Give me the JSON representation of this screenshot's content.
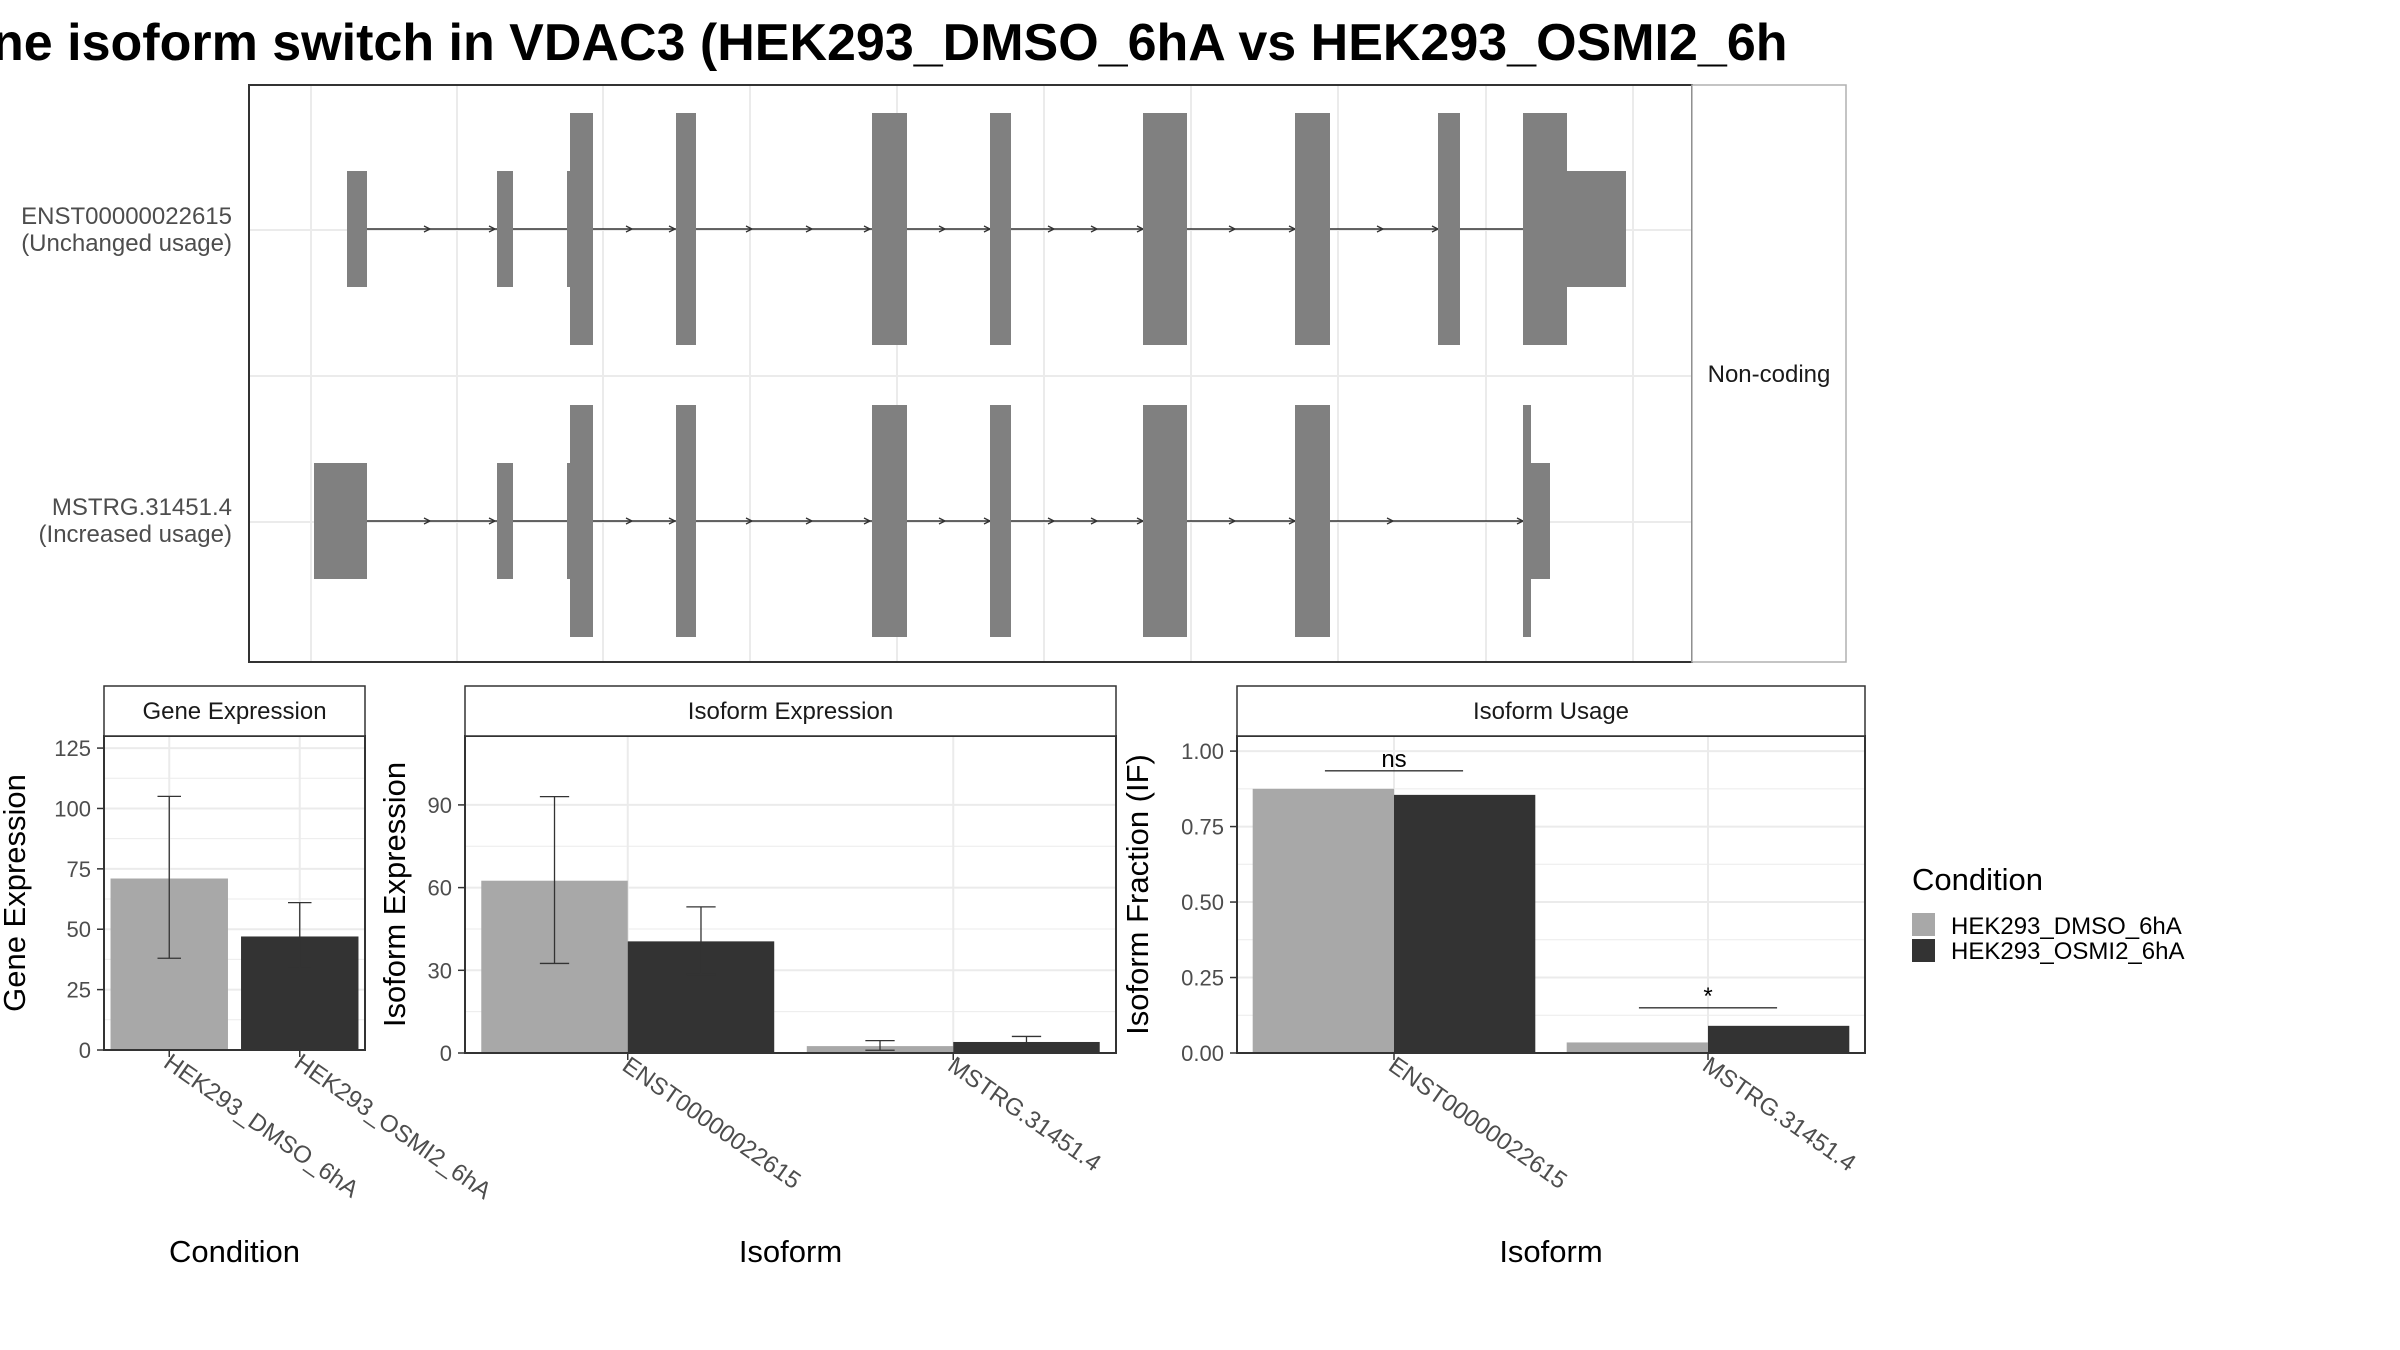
{
  "title": "ne isoform switch in VDAC3 (HEK293_DMSO_6hA vs HEK293_OSMI2_6h",
  "colors": {
    "dmso": "#a8a8a8",
    "osmi2": "#333333",
    "exon": "#808080",
    "grid": "#ebebeb",
    "panel_border": "#333333",
    "strip_fill": "#ffffff"
  },
  "legend": {
    "title": "Condition",
    "items": [
      "HEK293_DMSO_6hA",
      "HEK293_OSMI2_6hA"
    ]
  },
  "isoform_structure": {
    "facet_label": "Non-coding",
    "isoforms": [
      {
        "id": "ENST00000022615",
        "note": "(Unchanged usage)"
      },
      {
        "id": "MSTRG.31451.4",
        "note": "(Increased usage)"
      }
    ]
  },
  "chart_data": [
    {
      "type": "bar",
      "title": "Gene Expression",
      "xlabel": "Condition",
      "ylabel": "Gene Expression",
      "ylim": [
        0,
        130
      ],
      "yticks": [
        0,
        25,
        50,
        75,
        100,
        125
      ],
      "categories": [
        "HEK293_DMSO_6hA",
        "HEK293_OSMI2_6hA"
      ],
      "values": [
        71,
        47
      ],
      "error_low": [
        38,
        34
      ],
      "error_high": [
        105,
        61
      ]
    },
    {
      "type": "bar",
      "title": "Isoform Expression",
      "xlabel": "Isoform",
      "ylabel": "Isoform Expression",
      "ylim": [
        0,
        115
      ],
      "yticks": [
        0,
        30,
        60,
        90
      ],
      "categories": [
        "ENST00000022615",
        "MSTRG.31451.4"
      ],
      "series": [
        {
          "name": "HEK293_DMSO_6hA",
          "values": [
            62.5,
            2.5
          ],
          "error_low": [
            32.5,
            1
          ],
          "error_high": [
            93,
            4.5
          ]
        },
        {
          "name": "HEK293_OSMI2_6hA",
          "values": [
            40.5,
            4
          ],
          "error_low": [
            28.5,
            2.5
          ],
          "error_high": [
            53,
            6
          ]
        }
      ]
    },
    {
      "type": "bar",
      "title": "Isoform Usage",
      "xlabel": "Isoform",
      "ylabel": "Isoform Fraction (IF)",
      "ylim": [
        0,
        1.05
      ],
      "yticks": [
        0,
        0.25,
        0.5,
        0.75,
        1.0
      ],
      "ytick_labels": [
        "0.00",
        "0.25",
        "0.50",
        "0.75",
        "1.00"
      ],
      "categories": [
        "ENST00000022615",
        "MSTRG.31451.4"
      ],
      "series": [
        {
          "name": "HEK293_DMSO_6hA",
          "values": [
            0.875,
            0.035
          ]
        },
        {
          "name": "HEK293_OSMI2_6hA",
          "values": [
            0.855,
            0.09
          ]
        }
      ],
      "significance": [
        "ns",
        "*"
      ]
    }
  ]
}
